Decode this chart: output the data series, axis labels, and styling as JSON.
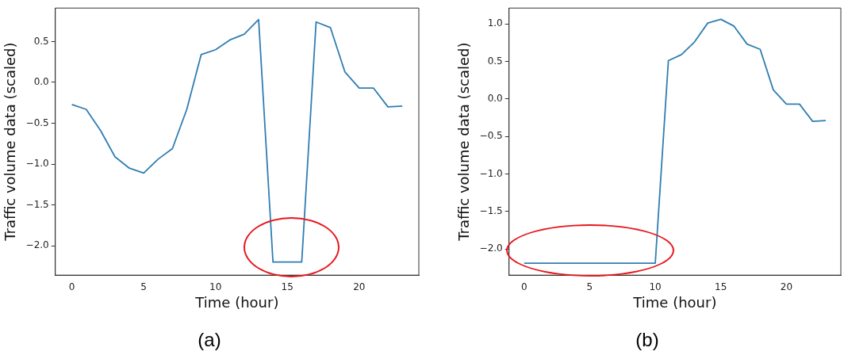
{
  "chart_data": [
    {
      "type": "line",
      "title": "(a)",
      "xlabel": "Time (hour)",
      "ylabel": "Traffic volume data (scaled)",
      "color": "#2f7eb2",
      "x": [
        0,
        1,
        2,
        3,
        4,
        5,
        6,
        7,
        8,
        9,
        10,
        11,
        12,
        13,
        14,
        15,
        16,
        17,
        18,
        19,
        20,
        21,
        22,
        23
      ],
      "values": [
        -0.27,
        -0.33,
        -0.59,
        -0.91,
        -1.05,
        -1.11,
        -0.94,
        -0.81,
        -0.33,
        0.34,
        0.4,
        0.52,
        0.59,
        0.77,
        -2.2,
        -2.2,
        -2.2,
        0.74,
        0.67,
        0.13,
        -0.07,
        -0.07,
        -0.3,
        -0.29
      ],
      "xlim": [
        -1.15,
        24.15
      ],
      "xticks": [
        0,
        5,
        10,
        15,
        20
      ],
      "ylim": [
        -2.36,
        0.91
      ],
      "yticks": [
        {
          "value": -2,
          "label": "−2.0"
        },
        {
          "value": -1.5,
          "label": "−1.5"
        },
        {
          "value": -1,
          "label": "−1.0"
        },
        {
          "value": -0.5,
          "label": "−0.5"
        },
        {
          "value": 0,
          "label": "0.0"
        },
        {
          "value": 0.5,
          "label": "0.5"
        }
      ]
    },
    {
      "type": "line",
      "title": "(b)",
      "xlabel": "Time (hour)",
      "ylabel": "Traffic volume data (scaled)",
      "color": "#2f7eb2",
      "x": [
        0,
        1,
        2,
        3,
        4,
        5,
        6,
        7,
        8,
        9,
        10,
        11,
        12,
        13,
        14,
        15,
        16,
        17,
        18,
        19,
        20,
        21,
        22,
        23
      ],
      "values": [
        -2.19,
        -2.19,
        -2.19,
        -2.19,
        -2.19,
        -2.19,
        -2.19,
        -2.19,
        -2.19,
        -2.19,
        -2.19,
        0.51,
        0.59,
        0.76,
        1.01,
        1.06,
        0.97,
        0.73,
        0.66,
        0.12,
        -0.07,
        -0.07,
        -0.3,
        -0.29
      ],
      "xlim": [
        -1.15,
        24.15
      ],
      "xticks": [
        0,
        5,
        10,
        15,
        20
      ],
      "ylim": [
        -2.35,
        1.21
      ],
      "yticks": [
        {
          "value": -2,
          "label": "−2.0"
        },
        {
          "value": -1.5,
          "label": "−1.5"
        },
        {
          "value": -1,
          "label": "−1.0"
        },
        {
          "value": -0.5,
          "label": "−0.5"
        },
        {
          "value": 0,
          "label": "0.0"
        },
        {
          "value": 0.5,
          "label": "0.5"
        },
        {
          "value": 1,
          "label": "1.0"
        }
      ]
    }
  ]
}
